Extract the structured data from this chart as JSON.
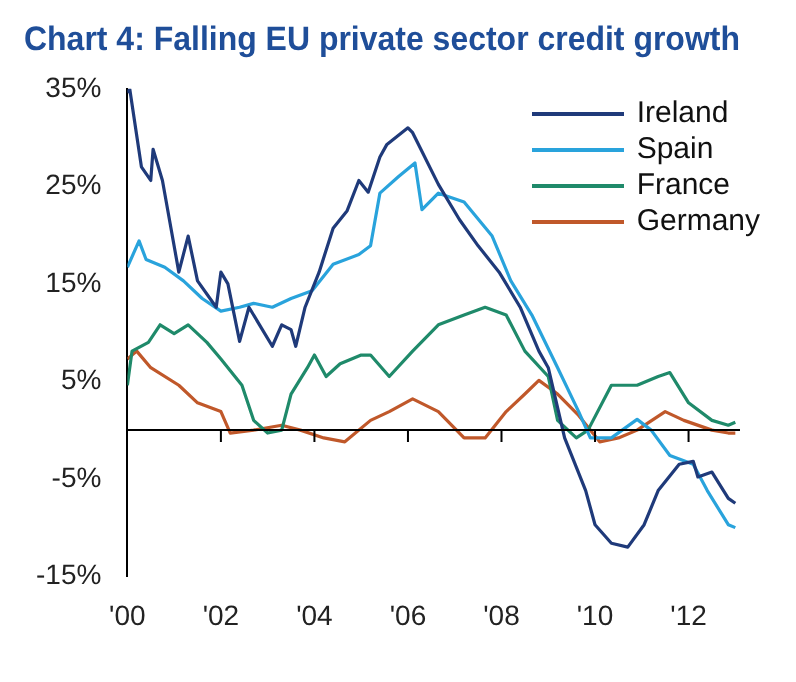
{
  "chart_data": {
    "type": "line",
    "title": "Chart 4: Falling EU private sector credit growth",
    "xlim": [
      2000,
      2013.1
    ],
    "xticks": [
      {
        "value": 2000,
        "label": "'00"
      },
      {
        "value": 2002,
        "label": "'02"
      },
      {
        "value": 2004,
        "label": "'04"
      },
      {
        "value": 2006,
        "label": "'06"
      },
      {
        "value": 2008,
        "label": "'08"
      },
      {
        "value": 2010,
        "label": "'10"
      },
      {
        "value": 2012,
        "label": "'12"
      }
    ],
    "ylim": [
      -15,
      35
    ],
    "yticks": [
      {
        "value": -15,
        "label": "-15%"
      },
      {
        "value": -5,
        "label": "-5%"
      },
      {
        "value": 5,
        "label": "5%"
      },
      {
        "value": 15,
        "label": "15%"
      },
      {
        "value": 25,
        "label": "25%"
      },
      {
        "value": 35,
        "label": "35%"
      }
    ],
    "grid": false,
    "legend": "top right",
    "marker": "none",
    "line_style": "solid",
    "series": [
      {
        "name": "Ireland",
        "color": "#1f3a7a",
        "x": [
          2000.0,
          2000.05,
          2000.3,
          2000.5,
          2000.55,
          2000.75,
          2001.1,
          2001.3,
          2001.5,
          2001.9,
          2002.0,
          2002.15,
          2002.4,
          2002.6,
          2002.8,
          2003.1,
          2003.3,
          2003.5,
          2003.6,
          2003.8,
          2004.1,
          2004.4,
          2004.7,
          2004.95,
          2005.15,
          2005.4,
          2005.55,
          2006.0,
          2006.1,
          2006.65,
          2007.1,
          2007.5,
          2007.95,
          2008.4,
          2008.8,
          2009.0,
          2009.35,
          2009.8,
          2010.0,
          2010.35,
          2010.7,
          2011.05,
          2011.35,
          2011.8,
          2012.1,
          2012.2,
          2012.5,
          2012.85,
          2013.0
        ],
        "values": [
          34.6,
          35,
          27,
          25.6,
          28.8,
          25.6,
          16.2,
          19.9,
          15.3,
          12.6,
          16.2,
          15,
          9.1,
          12.6,
          11,
          8.6,
          10.8,
          10.3,
          8.6,
          12.6,
          16.2,
          20.7,
          22.5,
          25.6,
          24.4,
          28,
          29.3,
          31,
          30.5,
          25.2,
          21.6,
          18.9,
          16.2,
          12.6,
          8.1,
          6.4,
          -0.8,
          -6.2,
          -9.7,
          -11.6,
          -12,
          -9.7,
          -6.2,
          -3.5,
          -3.2,
          -4.8,
          -4.3,
          -7,
          -7.5
        ]
      },
      {
        "name": "Spain",
        "color": "#29a3dc",
        "x": [
          2000.0,
          2000.25,
          2000.4,
          2000.8,
          2001.2,
          2001.6,
          2002.0,
          2002.4,
          2002.7,
          2003.1,
          2003.5,
          2003.95,
          2004.4,
          2004.95,
          2005.2,
          2005.4,
          2005.8,
          2006.15,
          2006.3,
          2006.65,
          2007.2,
          2007.8,
          2008.2,
          2008.65,
          2009.2,
          2009.65,
          2009.9,
          2010.35,
          2010.9,
          2011.2,
          2011.6,
          2012.1,
          2012.4,
          2012.85,
          2013.0
        ],
        "values": [
          16.7,
          19.4,
          17.5,
          16.7,
          15.3,
          13.5,
          12.2,
          12.6,
          13,
          12.6,
          13.5,
          14.3,
          17,
          18,
          18.9,
          24.3,
          26,
          27.4,
          22.6,
          24.3,
          23.4,
          19.9,
          15.3,
          11.8,
          6.4,
          1.9,
          -0.8,
          -0.8,
          1.1,
          0,
          -2.6,
          -3.5,
          -6.2,
          -9.7,
          -10
        ]
      },
      {
        "name": "France",
        "color": "#1f8a6a",
        "x": [
          2000.0,
          2000.1,
          2000.45,
          2000.7,
          2001.0,
          2001.3,
          2001.7,
          2002.0,
          2002.45,
          2002.7,
          2003.0,
          2003.3,
          2003.5,
          2003.85,
          2004.0,
          2004.25,
          2004.55,
          2005.0,
          2005.2,
          2005.6,
          2006.1,
          2006.65,
          2007.2,
          2007.65,
          2008.1,
          2008.5,
          2009.0,
          2009.2,
          2009.6,
          2009.85,
          2010.35,
          2010.9,
          2011.35,
          2011.6,
          2012.0,
          2012.5,
          2012.85,
          2013.0
        ],
        "values": [
          4.6,
          8.1,
          9,
          10.8,
          9.9,
          10.8,
          9,
          7.3,
          4.6,
          1,
          -0.3,
          0,
          3.7,
          6.4,
          7.7,
          5.5,
          6.8,
          7.7,
          7.7,
          5.5,
          8.1,
          10.8,
          11.8,
          12.6,
          11.8,
          8.1,
          5.5,
          1,
          -0.8,
          0,
          4.6,
          4.6,
          5.5,
          5.9,
          2.8,
          1,
          0.5,
          0.8
        ]
      },
      {
        "name": "Germany",
        "color": "#c0582a",
        "x": [
          2000.0,
          2000.2,
          2000.5,
          2001.1,
          2001.5,
          2002.0,
          2002.2,
          2002.7,
          2003.3,
          2003.7,
          2004.2,
          2004.65,
          2005.2,
          2005.6,
          2006.1,
          2006.65,
          2007.2,
          2007.65,
          2008.1,
          2008.5,
          2008.8,
          2009.2,
          2009.65,
          2010.1,
          2010.5,
          2010.9,
          2011.5,
          2011.9,
          2012.5,
          2012.85,
          2013.0
        ],
        "values": [
          7.3,
          8.1,
          6.4,
          4.6,
          2.8,
          1.9,
          -0.3,
          0,
          0.5,
          0,
          -0.8,
          -1.2,
          1,
          1.9,
          3.2,
          1.9,
          -0.8,
          -0.8,
          1.9,
          3.7,
          5.1,
          3.7,
          1.5,
          -1.2,
          -0.8,
          0,
          1.9,
          1,
          0,
          -0.3,
          -0.3
        ]
      }
    ]
  }
}
